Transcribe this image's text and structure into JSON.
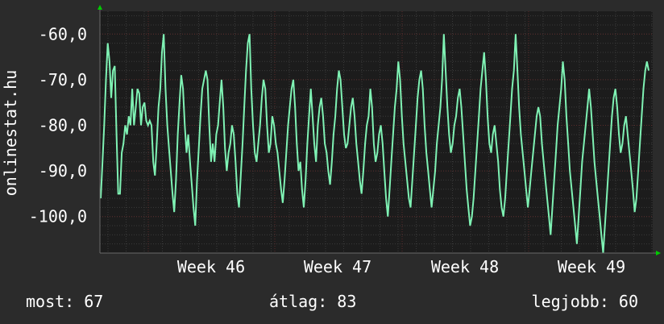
{
  "side_label": "onlinestat.hu",
  "stats": {
    "now_label": "most:",
    "now_value": "67",
    "avg_label": "átlag:",
    "avg_value": "83",
    "best_label": "legjobb:",
    "best_value": "60"
  },
  "colors": {
    "background": "#2b2b2b",
    "plot_background": "#1c1c1c",
    "line": "#7ff2b4",
    "grid_major": "#5a2a2a",
    "grid_minor": "#3a3a3a",
    "arrow": "#00cc00"
  },
  "chart_data": {
    "type": "line",
    "title": "",
    "xlabel": "",
    "ylabel": "",
    "x_tick_labels": [
      "Week 46",
      "Week 47",
      "Week 48",
      "Week 49"
    ],
    "y_ticks": [
      -60,
      -70,
      -80,
      -90,
      -100
    ],
    "y_tick_labels": [
      "-60,0",
      "-70,0",
      "-80,0",
      "-90,0",
      "-100,0"
    ],
    "ylim": [
      -108,
      -55
    ],
    "grid": true,
    "series": [
      {
        "name": "",
        "values": [
          -96,
          -88,
          -80,
          -70,
          -62,
          -66,
          -74,
          -68,
          -67,
          -82,
          -95,
          -95,
          -86,
          -84,
          -80,
          -82,
          -78,
          -80,
          -72,
          -80,
          -76,
          -72,
          -73,
          -80,
          -76,
          -75,
          -79,
          -80,
          -79,
          -80,
          -88,
          -91,
          -84,
          -76,
          -72,
          -64,
          -60,
          -72,
          -80,
          -85,
          -90,
          -95,
          -99,
          -92,
          -82,
          -75,
          -69,
          -72,
          -80,
          -86,
          -82,
          -88,
          -93,
          -98,
          -102,
          -92,
          -85,
          -78,
          -72,
          -70,
          -68,
          -70,
          -80,
          -88,
          -84,
          -88,
          -82,
          -80,
          -75,
          -70,
          -76,
          -85,
          -90,
          -86,
          -84,
          -80,
          -82,
          -88,
          -95,
          -98,
          -91,
          -84,
          -76,
          -68,
          -62,
          -60,
          -72,
          -80,
          -86,
          -88,
          -84,
          -80,
          -74,
          -70,
          -72,
          -80,
          -86,
          -84,
          -78,
          -80,
          -84,
          -86,
          -90,
          -94,
          -97,
          -92,
          -86,
          -80,
          -76,
          -72,
          -70,
          -76,
          -84,
          -90,
          -88,
          -94,
          -98,
          -92,
          -84,
          -78,
          -72,
          -78,
          -84,
          -88,
          -80,
          -76,
          -74,
          -78,
          -84,
          -86,
          -90,
          -93,
          -88,
          -82,
          -78,
          -72,
          -68,
          -70,
          -76,
          -82,
          -85,
          -84,
          -80,
          -76,
          -74,
          -78,
          -84,
          -88,
          -92,
          -95,
          -90,
          -84,
          -80,
          -78,
          -72,
          -76,
          -84,
          -88,
          -86,
          -82,
          -80,
          -84,
          -90,
          -96,
          -100,
          -94,
          -88,
          -82,
          -76,
          -72,
          -66,
          -70,
          -78,
          -84,
          -88,
          -92,
          -96,
          -98,
          -92,
          -86,
          -80,
          -74,
          -70,
          -68,
          -72,
          -80,
          -86,
          -90,
          -94,
          -98,
          -94,
          -90,
          -84,
          -80,
          -76,
          -70,
          -60,
          -68,
          -76,
          -82,
          -86,
          -84,
          -80,
          -78,
          -74,
          -72,
          -76,
          -82,
          -88,
          -94,
          -98,
          -102,
          -100,
          -96,
          -90,
          -84,
          -78,
          -72,
          -68,
          -64,
          -70,
          -78,
          -84,
          -86,
          -82,
          -80,
          -84,
          -88,
          -94,
          -98,
          -100,
          -96,
          -90,
          -84,
          -78,
          -72,
          -68,
          -60,
          -68,
          -76,
          -82,
          -86,
          -90,
          -94,
          -98,
          -94,
          -90,
          -86,
          -82,
          -78,
          -76,
          -78,
          -84,
          -88,
          -92,
          -96,
          -100,
          -104,
          -98,
          -92,
          -86,
          -80,
          -76,
          -72,
          -66,
          -70,
          -78,
          -84,
          -90,
          -94,
          -98,
          -102,
          -106,
          -100,
          -94,
          -88,
          -84,
          -80,
          -76,
          -72,
          -76,
          -82,
          -88,
          -92,
          -96,
          -100,
          -104,
          -108,
          -102,
          -96,
          -90,
          -84,
          -78,
          -74,
          -72,
          -76,
          -82,
          -86,
          -84,
          -80,
          -78,
          -82,
          -86,
          -90,
          -94,
          -99,
          -96,
          -90,
          -84,
          -78,
          -72,
          -68,
          -66,
          -68
        ]
      }
    ]
  }
}
